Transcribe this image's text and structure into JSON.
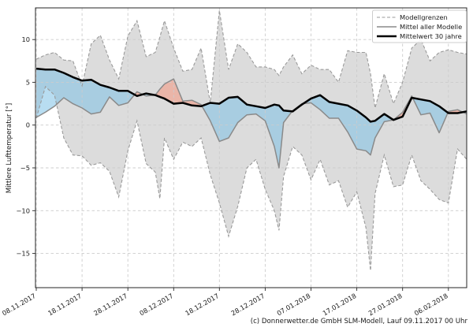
{
  "meta": {
    "caption": "(c) Donnerwetter.de GmbH SLM-Modell, Lauf 09.11.2017 00 Uhr"
  },
  "chart_data": {
    "type": "line",
    "title": "",
    "xlabel": "",
    "ylabel": "Mittlere Lufttemperatur [°]",
    "ylim": [
      -19,
      13.7
    ],
    "x_range_days": [
      0,
      94
    ],
    "grid": true,
    "yticks": [
      10,
      5,
      0,
      -5,
      -10,
      -15
    ],
    "ytick_labels": [
      "10",
      "5",
      "0",
      "−5",
      "−10",
      "−15"
    ],
    "xticks_days": [
      0,
      10,
      20,
      30,
      40,
      50,
      60,
      70,
      80,
      90
    ],
    "xtick_labels": [
      "08.11.2017",
      "18.11.2017",
      "28.11.2017",
      "08.12.2017",
      "18.12.2017",
      "28.12.2017",
      "07.01.2018",
      "17.01.2018",
      "27.01.2018",
      "06.02.2018"
    ],
    "legend": {
      "position": "top-right",
      "entries": [
        {
          "label": "Modellgrenzen",
          "style": "dashed-gray"
        },
        {
          "label": "Mittel aller Modelle",
          "style": "solid-gray"
        },
        {
          "label": "Mittelwert 30 jahre",
          "style": "thick-black"
        }
      ]
    },
    "days": [
      0,
      2,
      4,
      6,
      8,
      10,
      12,
      14,
      16,
      18,
      20,
      22,
      24,
      26,
      27,
      28,
      30,
      32,
      34,
      36,
      38,
      40,
      42,
      44,
      46,
      48,
      50,
      52,
      53,
      54,
      56,
      58,
      60,
      62,
      64,
      66,
      68,
      70,
      72,
      73,
      74,
      76,
      78,
      80,
      82,
      84,
      86,
      88,
      90,
      92,
      94
    ],
    "series": [
      {
        "name": "Modellgrenzen oben",
        "role": "band_upper",
        "values": [
          7.7,
          8.2,
          8.5,
          7.6,
          7.5,
          4.6,
          9.5,
          10.5,
          7.6,
          5.4,
          10.4,
          12.2,
          8.0,
          8.5,
          10.3,
          12.2,
          9.0,
          6.3,
          6.5,
          9.0,
          2.6,
          13.4,
          6.5,
          9.5,
          8.5,
          6.8,
          6.8,
          6.5,
          5.8,
          6.8,
          8.2,
          6.0,
          7.0,
          6.5,
          6.5,
          5.0,
          8.7,
          8.5,
          8.5,
          6.0,
          2.0,
          6.0,
          2.5,
          5.0,
          9.0,
          10.0,
          7.5,
          8.5,
          8.8,
          8.5,
          8.3
        ]
      },
      {
        "name": "Modellgrenzen unten",
        "role": "band_lower",
        "values": [
          0.8,
          4.5,
          3.5,
          -1.5,
          -3.5,
          -3.6,
          -4.7,
          -4.4,
          -5.4,
          -8.4,
          -3.0,
          0.5,
          -4.5,
          -5.5,
          -8.6,
          -1.5,
          -4.0,
          -2.0,
          -2.5,
          -1.5,
          -5.8,
          -9.1,
          -13.0,
          -9.5,
          -5.0,
          -4.0,
          -7.5,
          -10.0,
          -12.3,
          -6.0,
          -2.5,
          -3.5,
          -6.4,
          -4.0,
          -7.0,
          -6.5,
          -9.6,
          -7.8,
          -12.0,
          -17.0,
          -8.0,
          -3.5,
          -7.2,
          -7.0,
          -3.5,
          -6.5,
          -7.5,
          -8.7,
          -9.1,
          -2.8,
          -4.0
        ]
      },
      {
        "name": "Mittel aller Modelle",
        "role": "model_mean",
        "values": [
          0.9,
          1.5,
          2.2,
          3.2,
          2.5,
          2.0,
          1.3,
          1.5,
          3.3,
          2.3,
          2.6,
          3.9,
          3.4,
          3.5,
          4.2,
          4.8,
          5.4,
          2.8,
          2.9,
          2.4,
          0.5,
          -1.9,
          -1.5,
          0.3,
          1.2,
          1.3,
          0.5,
          -2.5,
          -5.0,
          0.3,
          1.7,
          2.5,
          2.6,
          1.8,
          0.8,
          0.8,
          -0.8,
          -2.8,
          -3.0,
          -3.5,
          -1.5,
          0.4,
          0.6,
          1.5,
          3.4,
          1.2,
          1.4,
          -0.9,
          1.6,
          1.8,
          1.3
        ]
      },
      {
        "name": "Mittelwert 30 jahre",
        "role": "climate_mean",
        "values": [
          6.6,
          6.5,
          6.5,
          6.1,
          5.6,
          5.2,
          5.3,
          4.7,
          4.4,
          4.0,
          4.0,
          3.4,
          3.7,
          3.5,
          3.3,
          3.1,
          2.5,
          2.6,
          2.3,
          2.2,
          2.6,
          2.5,
          3.2,
          3.3,
          2.4,
          2.2,
          2.0,
          2.4,
          2.3,
          1.7,
          1.6,
          2.4,
          3.1,
          3.5,
          2.7,
          2.5,
          2.3,
          1.7,
          0.9,
          0.4,
          0.5,
          1.3,
          0.6,
          1.0,
          3.2,
          3.0,
          2.8,
          2.2,
          1.4,
          1.4,
          1.6
        ]
      }
    ],
    "fills": {
      "band_label": "Modellgrenzen",
      "below_climate_color_meaning": "Mittel aller Modelle unter Mittelwert 30 jahre (blau)",
      "above_climate_color_meaning": "Mittel aller Modelle über Mittelwert 30 jahre (rot)"
    },
    "colors": {
      "band_fill": "#dcdcdc",
      "band_edge": "#9a9a9a",
      "below_fill": "rgba(125,193,230,0.55)",
      "above_fill": "rgba(245,150,125,0.55)",
      "model_mean_line": "#8a8a8a",
      "climate_mean_line": "#000000",
      "grid": "#cccccc",
      "axis": "#262626",
      "background": "#ffffff"
    }
  }
}
